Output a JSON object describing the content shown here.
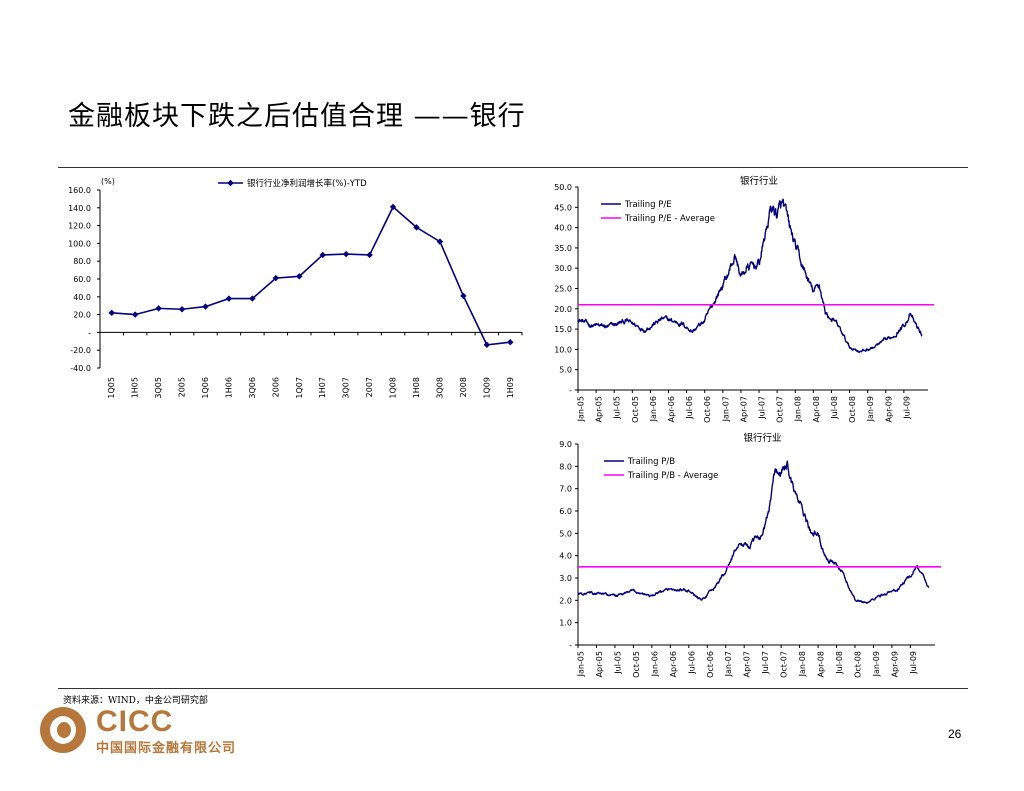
{
  "title": "金融板块下跌之后估值合理 ——银行",
  "source": "资料来源：WIND，中金公司研究部",
  "page_number": "26",
  "logo": {
    "brand": "CICC",
    "name_cn": "中国国际金融有限公司",
    "color": "#b8773a"
  },
  "chart_data": [
    {
      "type": "line",
      "unit_label": "(%)",
      "series": [
        {
          "name": "银行行业净利润增长率(%)-YTD",
          "color": "#000080",
          "marker": "diamond",
          "values": [
            22.0,
            20.0,
            27.0,
            26.0,
            29.0,
            38.0,
            38.0,
            61.0,
            63.0,
            87.0,
            88.0,
            87.0,
            141.0,
            118.0,
            102.0,
            41.0,
            -14.0,
            -11.0
          ]
        }
      ],
      "categories": [
        "1Q05",
        "1H05",
        "3Q05",
        "2005",
        "1Q06",
        "1H06",
        "3Q06",
        "2006",
        "1Q07",
        "1H07",
        "3Q07",
        "2007",
        "1Q08",
        "1H08",
        "3Q08",
        "2008",
        "1Q09",
        "1H09"
      ],
      "yticks": [
        "160.0",
        "140.0",
        "120.0",
        "100.0",
        "80.0",
        "60.0",
        "40.0",
        "20.0",
        "-",
        "-20.0",
        "-40.0"
      ],
      "ylim": [
        -40,
        160
      ],
      "legend_position": "top"
    },
    {
      "type": "line",
      "title": "银行行业",
      "series": [
        {
          "name": "Trailing P/E",
          "color": "#000080"
        },
        {
          "name": "Trailing P/E - Average",
          "color": "#ff00ff",
          "value": 21.0
        }
      ],
      "anchors": [
        [
          "2005-01",
          17.5
        ],
        [
          "2005-03",
          16.0
        ],
        [
          "2005-06",
          15.5
        ],
        [
          "2005-09",
          17.0
        ],
        [
          "2005-12",
          15.0
        ],
        [
          "2006-03",
          17.5
        ],
        [
          "2006-06",
          16.5
        ],
        [
          "2006-08",
          14.5
        ],
        [
          "2006-10",
          17.0
        ],
        [
          "2006-12",
          23.0
        ],
        [
          "2007-02",
          29.0
        ],
        [
          "2007-03",
          33.0
        ],
        [
          "2007-04",
          28.0
        ],
        [
          "2007-05",
          30.0
        ],
        [
          "2007-07",
          31.0
        ],
        [
          "2007-08",
          38.0
        ],
        [
          "2007-09",
          45.0
        ],
        [
          "2007-10",
          43.5
        ],
        [
          "2007-11",
          45.5
        ],
        [
          "2007-12",
          40.0
        ],
        [
          "2008-02",
          31.0
        ],
        [
          "2008-04",
          24.0
        ],
        [
          "2008-05",
          26.0
        ],
        [
          "2008-06",
          19.0
        ],
        [
          "2008-07",
          17.5
        ],
        [
          "2008-08",
          16.0
        ],
        [
          "2008-10",
          10.5
        ],
        [
          "2008-12",
          9.5
        ],
        [
          "2009-02",
          10.5
        ],
        [
          "2009-05",
          13.0
        ],
        [
          "2009-07",
          16.0
        ],
        [
          "2009-08",
          18.5
        ],
        [
          "2009-10",
          13.5
        ]
      ],
      "noise": 1.1,
      "yticks": [
        "50.0",
        "45.0",
        "40.0",
        "35.0",
        "30.0",
        "25.0",
        "20.0",
        "15.0",
        "10.0",
        "5.0",
        "-"
      ],
      "ylim": [
        0,
        50
      ],
      "xticks": [
        "Jan-05",
        "Apr-05",
        "Jul-05",
        "Oct-05",
        "Jan-06",
        "Apr-06",
        "Jul-06",
        "Oct-06",
        "Jan-07",
        "Apr-07",
        "Jul-07",
        "Oct-07",
        "Jan-08",
        "Apr-08",
        "Jul-08",
        "Oct-08",
        "Jan-09",
        "Apr-09",
        "Jul-09"
      ],
      "legend_position": "top-left"
    },
    {
      "type": "line",
      "title": "银行行业",
      "series": [
        {
          "name": "Trailing P/B",
          "color": "#000080"
        },
        {
          "name": "Trailing P/B - Average",
          "color": "#ff00ff",
          "value": 3.5
        }
      ],
      "anchors": [
        [
          "2005-01",
          2.3
        ],
        [
          "2005-04",
          2.3
        ],
        [
          "2005-07",
          2.2
        ],
        [
          "2005-10",
          2.4
        ],
        [
          "2006-01",
          2.2
        ],
        [
          "2006-04",
          2.5
        ],
        [
          "2006-07",
          2.4
        ],
        [
          "2006-09",
          2.0
        ],
        [
          "2006-11",
          2.5
        ],
        [
          "2007-01",
          3.3
        ],
        [
          "2007-03",
          4.5
        ],
        [
          "2007-05",
          4.5
        ],
        [
          "2007-07",
          5.0
        ],
        [
          "2007-08",
          6.0
        ],
        [
          "2007-09",
          7.8
        ],
        [
          "2007-10",
          7.7
        ],
        [
          "2007-11",
          8.1
        ],
        [
          "2007-12",
          7.0
        ],
        [
          "2008-02",
          5.6
        ],
        [
          "2008-03",
          4.9
        ],
        [
          "2008-04",
          5.0
        ],
        [
          "2008-05",
          4.0
        ],
        [
          "2008-06",
          3.8
        ],
        [
          "2008-07",
          3.5
        ],
        [
          "2008-08",
          3.2
        ],
        [
          "2008-10",
          2.0
        ],
        [
          "2008-12",
          1.9
        ],
        [
          "2009-02",
          2.2
        ],
        [
          "2009-05",
          2.5
        ],
        [
          "2009-07",
          3.1
        ],
        [
          "2009-08",
          3.6
        ],
        [
          "2009-10",
          2.6
        ]
      ],
      "noise": 0.14,
      "yticks": [
        "9.0",
        "8.0",
        "7.0",
        "6.0",
        "5.0",
        "4.0",
        "3.0",
        "2.0",
        "1.0",
        "-"
      ],
      "ylim": [
        0,
        9
      ],
      "xticks": [
        "Jan-05",
        "Apr-05",
        "Jul-05",
        "Oct-05",
        "Jan-06",
        "Apr-06",
        "Jul-06",
        "Oct-06",
        "Jan-07",
        "Apr-07",
        "Jul-07",
        "Oct-07",
        "Jan-08",
        "Apr-08",
        "Jul-08",
        "Oct-08",
        "Jan-09",
        "Apr-09",
        "Jul-09"
      ],
      "legend_position": "top-left"
    }
  ]
}
